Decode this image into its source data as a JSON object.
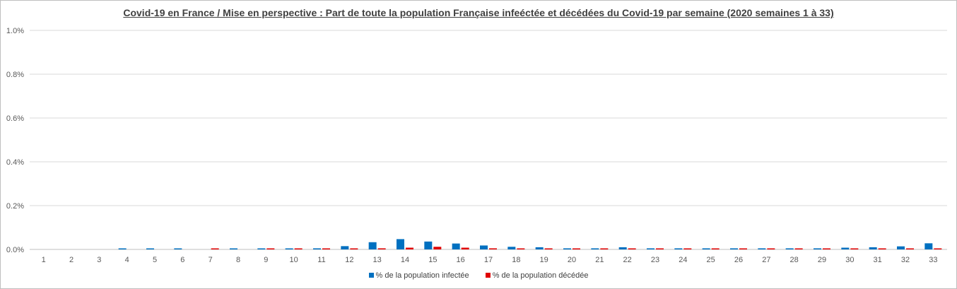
{
  "chart_data": {
    "type": "bar",
    "title": "Covid-19 en France / Mise en perspective : Part de toute la population Française infeéctée et décédées du Covid-19 par semaine (2020 semaines 1 à 33)",
    "categories": [
      "1",
      "2",
      "3",
      "4",
      "5",
      "6",
      "7",
      "8",
      "9",
      "10",
      "11",
      "12",
      "13",
      "14",
      "15",
      "16",
      "17",
      "18",
      "19",
      "20",
      "21",
      "22",
      "23",
      "24",
      "25",
      "26",
      "27",
      "28",
      "29",
      "30",
      "31",
      "32",
      "33"
    ],
    "yticks": [
      "0.0%",
      "0.2%",
      "0.4%",
      "0.6%",
      "0.8%",
      "1.0%"
    ],
    "ylim": [
      0,
      1.0
    ],
    "yunit": "%",
    "grid": true,
    "legend_position": "bottom",
    "series": [
      {
        "name": "% de la population infectée",
        "color": "#0070C0",
        "values": [
          0,
          0,
          0,
          0.004,
          0.004,
          0.004,
          0,
          0.003,
          0.004,
          0.004,
          0.005,
          0.015,
          0.033,
          0.047,
          0.036,
          0.027,
          0.018,
          0.012,
          0.01,
          0.005,
          0.005,
          0.01,
          0.005,
          0.005,
          0.005,
          0.005,
          0.005,
          0.005,
          0.005,
          0.008,
          0.01,
          0.014,
          0.028
        ]
      },
      {
        "name": "% de la population décédée",
        "color": "#E00000",
        "values": [
          0,
          0,
          0,
          0,
          0,
          0,
          0.003,
          0,
          0.003,
          0.003,
          0.003,
          0.004,
          0.005,
          0.008,
          0.012,
          0.008,
          0.005,
          0.004,
          0.004,
          0.003,
          0.003,
          0.003,
          0.003,
          0.003,
          0.003,
          0.003,
          0.003,
          0.003,
          0.003,
          0.003,
          0.003,
          0.003,
          0.003
        ]
      }
    ]
  }
}
